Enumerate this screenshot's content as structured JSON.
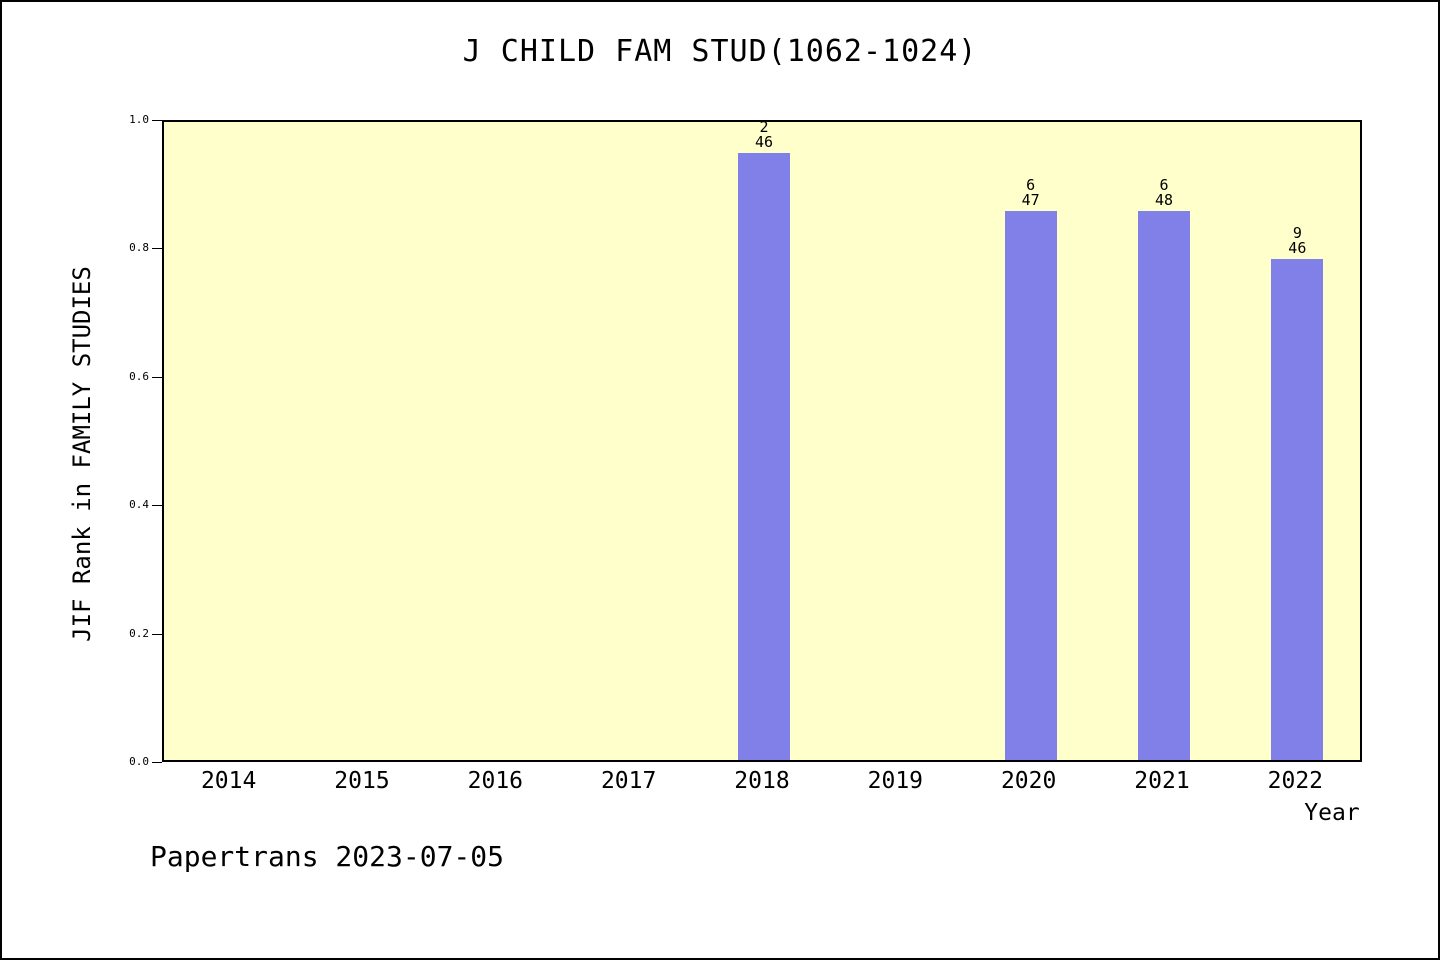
{
  "title": "J CHILD FAM STUD(1062-1024)",
  "footer": "Papertrans 2023-07-05",
  "chart_data": {
    "type": "bar",
    "title": "J CHILD FAM STUD(1062-1024)",
    "xlabel": "Year",
    "ylabel": "JIF Rank in FAMILY STUDIES",
    "categories": [
      "2014",
      "2015",
      "2016",
      "2017",
      "2018",
      "2019",
      "2020",
      "2021",
      "2022"
    ],
    "values": [
      null,
      null,
      null,
      null,
      0.945,
      null,
      0.855,
      0.855,
      0.78
    ],
    "bars": [
      {
        "category": "2018",
        "rank": "2",
        "total": "46",
        "value": 0.945
      },
      {
        "category": "2020",
        "rank": "6",
        "total": "47",
        "value": 0.855
      },
      {
        "category": "2021",
        "rank": "6",
        "total": "48",
        "value": 0.855
      },
      {
        "category": "2022",
        "rank": "9",
        "total": "46",
        "value": 0.78
      }
    ],
    "ylim": [
      0.0,
      1.0
    ],
    "yticks": [
      0.0,
      0.2,
      0.4,
      0.6,
      0.8,
      1.0
    ],
    "grid": false,
    "legend": false,
    "colors": {
      "bar": "#8080e8",
      "plot_bg": "#ffffcc",
      "page_bg": "#ffffff",
      "axis": "#000000"
    }
  }
}
